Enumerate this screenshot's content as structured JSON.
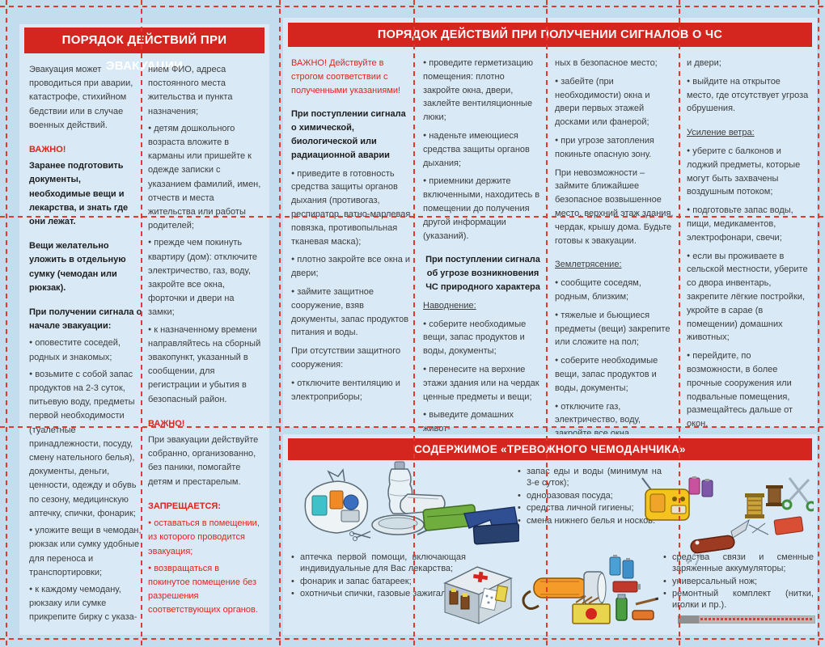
{
  "colors": {
    "page_bg": "#c3ddee",
    "card_bg": "#d9eaf6",
    "header_red": "#d5251f",
    "accent_red": "#e0231c",
    "fold_line_red": "#e03b2c",
    "body_text": "#3c3c3c"
  },
  "evac_panel": {
    "title": "ПОРЯДОК ДЕЙСТВИЙ ПРИ ЭВАКУАЦИИ",
    "col1": [
      {
        "t": "plain",
        "text": "Эвакуация может проводиться при аварии, катастрофе, стихийном бедствии или в случае военных действий."
      },
      {
        "t": "redb",
        "gap": true,
        "text": "ВАЖНО!"
      },
      {
        "t": "bold",
        "text": "Заранее подготовить документы, необходимые вещи и лекарства, и знать где они лежат."
      },
      {
        "t": "bold",
        "gap": true,
        "text": "Вещи желательно уложить в отдельную сумку (чемодан или рюкзак)."
      },
      {
        "t": "bold",
        "gap": true,
        "text": "При получении сигнала о начале эвакуации:"
      },
      {
        "t": "bullet",
        "text": "оповестите соседей, родных и знакомых;"
      },
      {
        "t": "bullet",
        "text": "возьмите с собой запас продуктов на 2-3 суток, питьевую воду, предметы первой необходимости (туалетные принадлежности, посуду, смену нательного белья), документы, деньги, ценности, одежду и обувь по сезону, медицинскую аптечку, спички, фонарик;"
      },
      {
        "t": "bullet",
        "text": "уложите вещи в чемодан, рюкзак или сумку удобные для переноса и транспортировки;"
      },
      {
        "t": "bullet",
        "text": "к каждому чемодану, рюкзаку или сумке прикрепите бирку с указа-"
      }
    ],
    "col2": [
      {
        "t": "plain",
        "text": "нием ФИО, адреса постоянного места жительства и пункта назначения;"
      },
      {
        "t": "bullet",
        "text": "детям дошкольного возраста вложите в карманы или пришейте к одежде записки с указанием фамилий, имен, отчеств и места жительства или работы родителей;"
      },
      {
        "t": "bullet",
        "text": "прежде чем покинуть квартиру (дом): отключите электричество, газ, воду, закройте все окна, форточки и двери на замки;"
      },
      {
        "t": "bullet",
        "text": "к назначенному времени направляйтесь на сборный эвакопункт, указанный в сообщении, для регистрации и убытия в безопасный район."
      },
      {
        "t": "redb",
        "gap": true,
        "text": "ВАЖНО!"
      },
      {
        "t": "plain",
        "text": "При эвакуации действуйте собранно, организованно, без паники, помогайте детям и престарелым."
      },
      {
        "t": "redb",
        "gap": true,
        "text": "ЗАПРЕЩАЕТСЯ:"
      },
      {
        "t": "rbullet",
        "text": "оставаться в помещении, из которого проводится эвакуация;"
      },
      {
        "t": "rbullet",
        "text": "возвращаться в покинутое помещение без разрешения соответствующих органов."
      }
    ]
  },
  "signals_panel": {
    "title": "ПОРЯДОК ДЕЙСТВИЙ ПРИ ПОЛУЧЕНИИ СИГНАЛОВ О ЧС",
    "col1": [
      {
        "t": "red",
        "text": "ВАЖНО! Действуйте в строгом соответствии с полученными указаниями!"
      },
      {
        "t": "bold",
        "gap": true,
        "text": "При поступлении сигнала о химической, биологической или радиационной аварии"
      },
      {
        "t": "bullet",
        "text": "приведите в готовность средства защиты органов дыхания (противогаз, респиратор, ватно-марлевая повязка, противопыльная тканевая маска);"
      },
      {
        "t": "bullet",
        "text": "плотно закройте все окна и двери;"
      },
      {
        "t": "bullet",
        "text": "займите защитное сооружение, взяв документы, запас продуктов питания и воды."
      },
      {
        "t": "plain",
        "text": "При отсутствии защитного сооружения:"
      },
      {
        "t": "bullet",
        "text": "отключите вентиляцию и электроприборы;"
      }
    ],
    "col2": [
      {
        "t": "bullet",
        "text": "проведите герметизацию помещения: плотно закройте окна, двери, заклейте вентиляционные люки;"
      },
      {
        "t": "bullet",
        "text": "наденьте имеющиеся средства защиты органов дыхания;"
      },
      {
        "t": "bullet",
        "text": "приемники держите включенными, находитесь в помещении до получения другой информации (указаний)."
      },
      {
        "t": "boldc",
        "gap": true,
        "text": "При поступлении сигнала об угрозе возникновения ЧС природного характера"
      },
      {
        "t": "under",
        "text": "Наводнение:"
      },
      {
        "t": "bullet",
        "text": "соберите необходимые вещи, запас продуктов и воды, документы;"
      },
      {
        "t": "bullet",
        "text": "перенесите на верхние этажи здания или на чердак ценные предметы и вещи;"
      },
      {
        "t": "bullet",
        "text": "выведите домашних живот-"
      }
    ],
    "col3": [
      {
        "t": "plain",
        "text": "ных в безопасное место;"
      },
      {
        "t": "bullet",
        "text": "забейте (при необходимости) окна и двери первых этажей досками или фанерой;"
      },
      {
        "t": "bullet",
        "text": "при угрозе затопления покиньте опасную зону."
      },
      {
        "t": "plain",
        "text": "При невозможности – займите ближайшее безопасное возвышенное место, верхний этаж здания, чердак, крышу дома. Будьте готовы к эвакуации."
      },
      {
        "t": "under",
        "gap": true,
        "text": "Землетрясение:"
      },
      {
        "t": "bullet",
        "text": "сообщите соседям, родным, близким;"
      },
      {
        "t": "bullet",
        "text": "тяжелые и бьющиеся предметы (вещи) закрепите или сложите на пол;"
      },
      {
        "t": "bullet",
        "text": "соберите необходимые вещи, запас продуктов и воды, документы;"
      },
      {
        "t": "bullet",
        "text": "отключите газ, электричество, воду, закройте все окна"
      }
    ],
    "col4": [
      {
        "t": "plain",
        "text": "и двери;"
      },
      {
        "t": "bullet",
        "text": "выйдите на открытое место, где отсутствует угроза обрушения."
      },
      {
        "t": "under",
        "gap": true,
        "text": "Усиление ветра:"
      },
      {
        "t": "bullet",
        "text": "уберите с балконов и лоджий предметы, которые могут быть захвачены воздушным потоком;"
      },
      {
        "t": "bullet",
        "text": "подготовьте запас воды, пищи, медикаментов, электрофонари, свечи;"
      },
      {
        "t": "bullet",
        "text": "если вы проживаете в сельской местности, уберите со двора инвентарь, закрепите лёгкие постройки, укройте в сарае (в помещении) домашних животных;"
      },
      {
        "t": "bullet",
        "text": "перейдите, по возможности, в более прочные сооружения или подвальные помещения, размещайтесь дальше от окон."
      }
    ]
  },
  "suitcase_panel": {
    "title": "СОДЕРЖИМОЕ «ТРЕВОЖНОГО ЧЕМОДАНЧИКА»",
    "list_top": [
      "запас еды и воды (минимум на 3-е суток);",
      "одноразовая посуда;",
      "средства личной гигиены;",
      "смена нижнего белья и носков."
    ],
    "list_left": [
      "аптечка первой помощи, включающая индивидуальные для Вас лекарства;",
      "фонарик и запас батареек;",
      "охотничьи спички, газовые зажигалки;"
    ],
    "list_right": [
      "средства связи и сменные заряженные аккумуляторы;",
      "универсальный нож;",
      "ремонтный комплект (нитки, иголки и пр.)."
    ],
    "illustrations": [
      "grocery-bag-illustration",
      "water-bottle-bowl-illustration",
      "folded-clothes-illustration",
      "radio-batteries-illustration",
      "sewing-kit-illustration",
      "pocket-knife-illustration",
      "first-aid-kit-illustration",
      "flashlight-batteries-illustration",
      "matches-lighters-illustration"
    ]
  }
}
